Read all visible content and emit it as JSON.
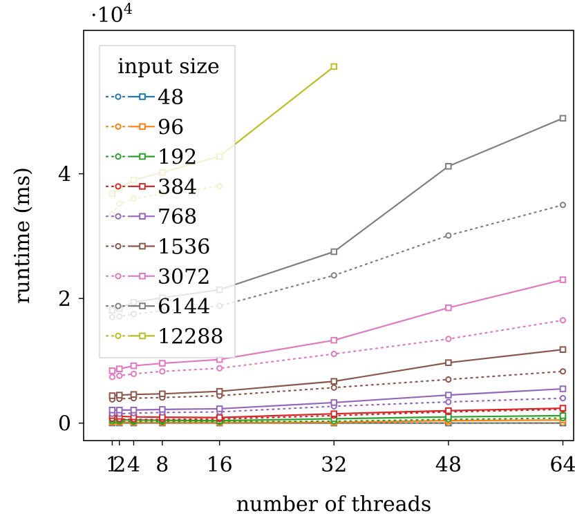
{
  "chart_data": {
    "type": "line",
    "xlabel": "number of threads",
    "ylabel": "runtime (ms)",
    "y_multiplier_label": "·10",
    "y_multiplier_exponent": "4",
    "x_ticks": [
      1,
      2,
      4,
      8,
      16,
      32,
      48,
      64
    ],
    "y_ticks": [
      0,
      2,
      4
    ],
    "y_scale_factor": 10000,
    "xlim": [
      -3,
      65.5
    ],
    "ylim": [
      -2800,
      63000
    ],
    "legend": {
      "title": "input size",
      "placement": "top-left"
    },
    "grid": false,
    "series": [
      {
        "name": "48",
        "color": "#1f77b4",
        "dotted": [
          10,
          10,
          8,
          6,
          5,
          3,
          4,
          5
        ],
        "solid": [
          30,
          28,
          25,
          20,
          18,
          15,
          15,
          15
        ]
      },
      {
        "name": "96",
        "color": "#ff7f0e",
        "dotted": [
          60,
          55,
          50,
          45,
          40,
          35,
          38,
          40
        ],
        "solid": [
          150,
          140,
          120,
          100,
          90,
          130,
          400,
          500
        ]
      },
      {
        "name": "192",
        "color": "#2ca02c",
        "dotted": [
          300,
          280,
          250,
          230,
          220,
          300,
          600,
          800
        ],
        "solid": [
          600,
          550,
          500,
          450,
          400,
          700,
          1000,
          1200
        ]
      },
      {
        "name": "384",
        "color": "#d62728",
        "dotted": [
          700,
          650,
          600,
          600,
          650,
          1200,
          1800,
          2200
        ],
        "solid": [
          1200,
          1100,
          1000,
          950,
          900,
          1500,
          2000,
          2400
        ]
      },
      {
        "name": "768",
        "color": "#9467bd",
        "dotted": [
          1500,
          1500,
          1600,
          1700,
          1800,
          2700,
          3400,
          4000
        ],
        "solid": [
          2100,
          2100,
          2100,
          2200,
          2300,
          3300,
          4500,
          5500
        ]
      },
      {
        "name": "1536",
        "color": "#8c564b",
        "dotted": [
          3800,
          3900,
          4000,
          4100,
          4400,
          5700,
          7000,
          8300
        ],
        "solid": [
          4400,
          4500,
          4600,
          4700,
          5100,
          6700,
          9700,
          11800
        ]
      },
      {
        "name": "3072",
        "color": "#e377c2",
        "dotted": [
          7400,
          7600,
          7900,
          8300,
          8800,
          11100,
          13500,
          16500
        ],
        "solid": [
          8400,
          8700,
          9200,
          9600,
          10200,
          13300,
          18500,
          23000
        ]
      },
      {
        "name": "6144",
        "color": "#7f7f7f",
        "dotted": [
          17000,
          17100,
          17500,
          18000,
          18800,
          23700,
          30100,
          35000
        ],
        "solid": [
          18100,
          18400,
          19400,
          20100,
          21400,
          27500,
          41200,
          48900
        ]
      },
      {
        "name": "12288",
        "color": "#bcbd22",
        "dotted": [
          33500,
          35200,
          36000,
          36800,
          38000,
          null,
          null,
          null
        ],
        "solid": [
          36800,
          37700,
          39000,
          40200,
          42800,
          57200,
          null,
          null
        ]
      }
    ]
  }
}
